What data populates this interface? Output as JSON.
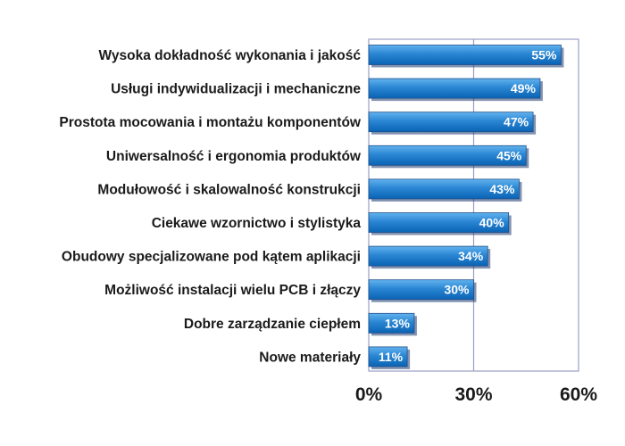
{
  "chart_data": {
    "type": "bar",
    "orientation": "horizontal",
    "categories": [
      "Wysoka dokładność wykonania i jakość",
      "Usługi indywidualizacji i mechaniczne",
      "Prostota mocowania i montażu komponentów",
      "Uniwersalność i ergonomia produktów",
      "Modułowość i skalowalność konstrukcji",
      "Ciekawe wzornictwo i stylistyka",
      "Obudowy specjalizowane pod kątem aplikacji",
      "Możliwość instalacji wielu PCB i złączy",
      "Dobre zarządzanie ciepłem",
      "Nowe materiały"
    ],
    "values": [
      55,
      49,
      47,
      45,
      43,
      40,
      34,
      30,
      13,
      11
    ],
    "data_labels": [
      "55%",
      "49%",
      "47%",
      "45%",
      "43%",
      "40%",
      "34%",
      "30%",
      "13%",
      "11%"
    ],
    "xlim": [
      0,
      60
    ],
    "xticks": [
      0,
      30,
      60
    ],
    "xtick_labels": [
      "0%",
      "30%",
      "60%"
    ],
    "grid": true,
    "legend": "none",
    "colors": {
      "bar_light": "#62b3ee",
      "bar_dark": "#0a63b4",
      "bar_edge": "#1f4f8c",
      "shadow": "#1d3b70",
      "gridline": "#9a9fc4",
      "frame": "#9a9fc4"
    }
  }
}
